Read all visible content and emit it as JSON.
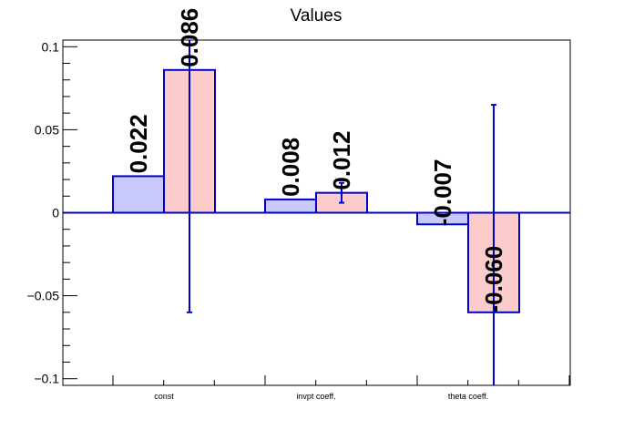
{
  "chart_data": {
    "type": "bar",
    "title": "Values",
    "xlabel": "",
    "ylabel": "",
    "ylim": [
      -0.104,
      0.104
    ],
    "grid": false,
    "categories": [
      "const",
      "invpt coeff.",
      "theta coeff."
    ],
    "series": [
      {
        "color": "#c8c8fa",
        "values": [
          0.022,
          0.008,
          -0.007
        ],
        "labels": [
          "0.022",
          "0.008",
          "-0.007"
        ]
      },
      {
        "color": "#fccccc",
        "values": [
          0.086,
          0.012,
          -0.06
        ],
        "labels": [
          "0.086",
          "0.012",
          "-0.060"
        ],
        "errors": [
          0.146,
          0.006,
          0.125
        ]
      }
    ],
    "y_ticks": [
      {
        "value": 0.1,
        "label": "0.1"
      },
      {
        "value": 0.05,
        "label": "0.05"
      },
      {
        "value": 0,
        "label": "0"
      },
      {
        "value": -0.05,
        "label": "−0.05"
      },
      {
        "value": -0.1,
        "label": "−0.1"
      }
    ],
    "colors": {
      "outline": "#0000cc",
      "axis": "#000000"
    }
  }
}
